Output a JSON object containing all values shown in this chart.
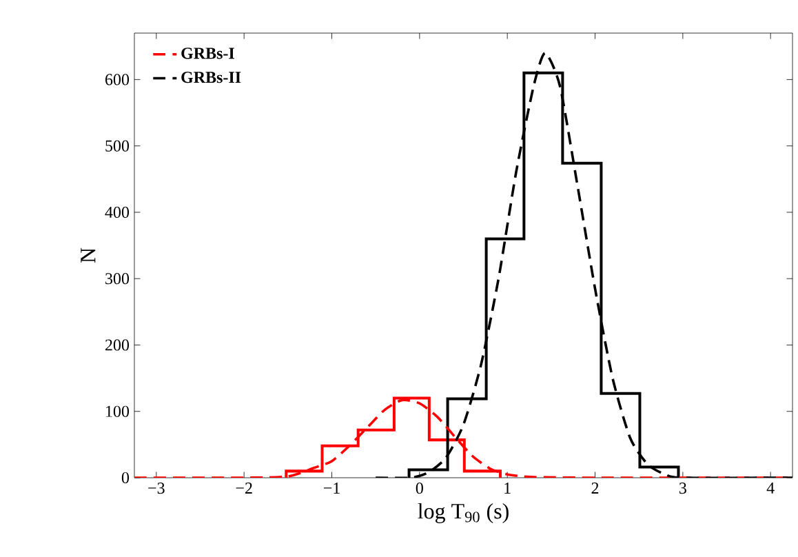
{
  "chart_data": {
    "type": "histogram",
    "xlabel": "log T$_{90}$ (s)",
    "ylabel": "N",
    "xlim": [
      -3.25,
      4.25
    ],
    "ylim": [
      0,
      670
    ],
    "xticks": [
      {
        "value": -3,
        "label": "−3"
      },
      {
        "value": -2,
        "label": "−2"
      },
      {
        "value": -1,
        "label": "−1"
      },
      0,
      1,
      2,
      3,
      4
    ],
    "yticks": [
      0,
      100,
      200,
      300,
      400,
      500,
      600
    ],
    "legend": "top left",
    "grid": false,
    "series": [
      {
        "type": "histogram",
        "color": "#ff0000",
        "bins": [
          -1.52,
          -1.11,
          -0.7,
          -0.29,
          0.11,
          0.51,
          0.92
        ],
        "values": [
          10,
          48,
          72,
          120,
          57,
          10
        ]
      },
      {
        "type": "histogram",
        "color": "#000000",
        "bins": [
          -0.12,
          0.32,
          0.76,
          1.19,
          1.63,
          2.07,
          2.51,
          2.95
        ],
        "values": [
          12,
          119,
          360,
          610,
          474,
          127,
          16
        ]
      },
      {
        "type": "line",
        "name": "GRBs-I",
        "color": "#ff0000",
        "line_style": "dashed",
        "x": [
          -3.25,
          -2,
          -1.5,
          -1.2,
          -1,
          -0.8,
          -0.6,
          -0.4,
          -0.2,
          0,
          0.2,
          0.4,
          0.6,
          0.8,
          1,
          1.3,
          2,
          4.25
        ],
        "values": [
          0,
          0,
          2,
          15,
          25,
          48,
          75,
          102,
          117,
          112,
          92,
          62,
          33,
          14,
          5,
          1,
          0,
          0
        ]
      },
      {
        "type": "line",
        "name": "GRBs-II",
        "color": "#000000",
        "line_style": "dashed",
        "x": [
          -0.5,
          -0.1,
          0.1,
          0.3,
          0.5,
          0.7,
          0.9,
          1.1,
          1.3,
          1.43,
          1.6,
          1.8,
          2.0,
          2.2,
          2.4,
          2.6,
          2.8,
          3,
          4.25
        ],
        "values": [
          0,
          0,
          8,
          30,
          80,
          170,
          300,
          460,
          590,
          640,
          590,
          440,
          285,
          150,
          60,
          20,
          5,
          0,
          0
        ]
      }
    ]
  }
}
